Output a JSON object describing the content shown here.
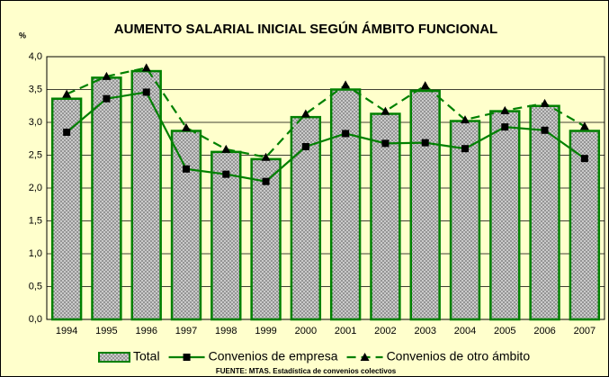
{
  "chart_data": {
    "type": "bar",
    "title": "AUMENTO SALARIAL INICIAL SEGÚN ÁMBITO FUNCIONAL",
    "y_label": "%",
    "source": "FUENTE: MTAS. Estadística de convenios colectivos",
    "categories": [
      "1994",
      "1995",
      "1996",
      "1997",
      "1998",
      "1999",
      "2000",
      "2001",
      "2002",
      "2003",
      "2004",
      "2005",
      "2006",
      "2007"
    ],
    "series": [
      {
        "name": "Total",
        "type": "bar",
        "color": "#b0b0b0",
        "border": "#008000",
        "values": [
          3.36,
          3.68,
          3.78,
          2.87,
          2.55,
          2.44,
          3.08,
          3.5,
          3.13,
          3.48,
          3.02,
          3.17,
          3.25,
          2.87
        ]
      },
      {
        "name": "Convenios de empresa",
        "type": "line",
        "color": "#008000",
        "marker": "square",
        "values": [
          2.85,
          3.36,
          3.46,
          2.29,
          2.21,
          2.1,
          2.63,
          2.83,
          2.68,
          2.69,
          2.6,
          2.93,
          2.88,
          2.45
        ]
      },
      {
        "name": "Convenios de otro ámbito",
        "type": "line",
        "color": "#008000",
        "marker": "triangle",
        "dashed": true,
        "values": [
          3.43,
          3.7,
          3.83,
          2.92,
          2.59,
          2.47,
          3.13,
          3.57,
          3.17,
          3.56,
          3.04,
          3.18,
          3.29,
          2.94
        ]
      }
    ],
    "ylim": [
      0,
      4
    ],
    "yticks": [
      {
        "value": 0,
        "label": "0,0"
      },
      {
        "value": 0.5,
        "label": "0,5"
      },
      {
        "value": 1,
        "label": "1,0"
      },
      {
        "value": 1.5,
        "label": "1,5"
      },
      {
        "value": 2,
        "label": "2,0"
      },
      {
        "value": 2.5,
        "label": "2,5"
      },
      {
        "value": 3,
        "label": "3,0"
      },
      {
        "value": 3.5,
        "label": "3,5"
      },
      {
        "value": 4,
        "label": "4,0"
      }
    ],
    "grid": true,
    "legend": "bottom"
  }
}
